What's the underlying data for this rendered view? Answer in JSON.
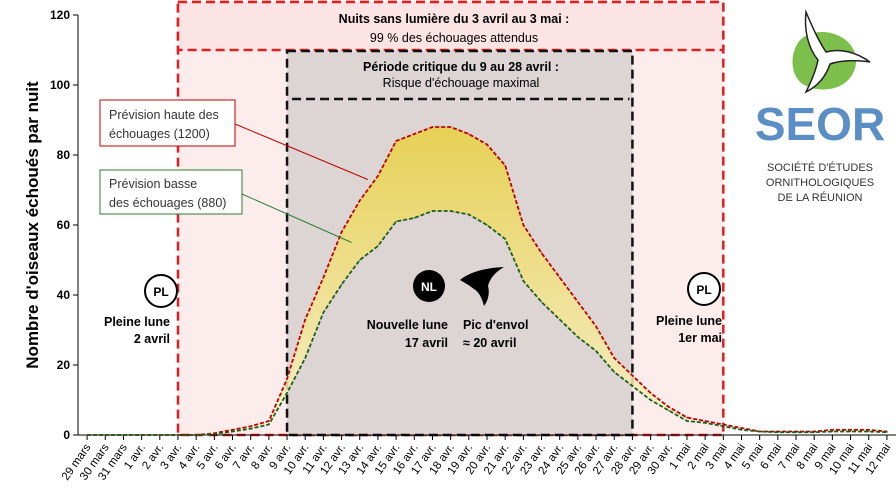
{
  "chart_data": {
    "type": "area",
    "ylabel": "Nombre d'oiseaux échoués par nuit",
    "ylim": [
      0,
      120
    ],
    "yticks": [
      0,
      20,
      40,
      60,
      80,
      100,
      120
    ],
    "categories": [
      "29 mars",
      "30 mars",
      "31 mars",
      "1 avr.",
      "2 avr.",
      "3 avr.",
      "4 avr.",
      "5 avr.",
      "6 avr.",
      "7 avr.",
      "8 avr.",
      "9 avr.",
      "10 avr.",
      "11 avr.",
      "12 avr.",
      "13 avr.",
      "14 avr.",
      "15 avr.",
      "16 avr.",
      "17 avr.",
      "18 avr.",
      "19 avr.",
      "20 avr.",
      "21 avr.",
      "22 avr.",
      "23 avr.",
      "24 avr.",
      "25 avr.",
      "26 avr.",
      "27 avr.",
      "28 avr.",
      "29 avr.",
      "30 avr.",
      "1 mai",
      "2 mai",
      "3 mai",
      "4 mai",
      "5 mai",
      "6 mai",
      "7 mai",
      "8 mai",
      "9 mai",
      "10 mai",
      "11 mai",
      "12 mai"
    ],
    "series": [
      {
        "name": "Prévision haute des échouages (1200)",
        "color": "#c00000",
        "values": [
          0,
          0,
          0,
          0,
          0,
          0,
          0,
          0.5,
          1.5,
          2.5,
          4,
          16,
          33,
          45,
          58,
          67,
          74,
          84,
          86,
          88,
          88,
          86,
          83,
          77,
          60,
          52,
          45,
          38,
          31,
          22,
          17,
          12,
          8,
          5,
          4,
          3,
          2,
          1,
          1,
          1,
          1,
          1.5,
          1.5,
          1.5,
          1
        ]
      },
      {
        "name": "Prévision basse des échouages (880)",
        "color": "#2e7d32",
        "values": [
          0,
          0,
          0,
          0,
          0,
          0,
          0,
          0.3,
          1,
          1.8,
          3,
          12,
          22,
          35,
          43,
          50,
          54,
          61,
          62,
          64,
          64,
          63,
          60,
          56,
          44,
          38,
          33,
          28,
          24,
          18,
          14,
          10,
          7,
          4,
          3.5,
          2.5,
          1.5,
          1,
          0.8,
          0.8,
          0.8,
          1,
          1,
          1,
          0.8
        ]
      }
    ],
    "annotations": {
      "night_period": {
        "title": "Nuits sans lumière du 3 avril au 3 mai :",
        "subtitle": "99 % des échouages attendus",
        "from": "3 avr.",
        "to": "3 mai"
      },
      "critical_period": {
        "title": "Période critique du 9 au 28 avril :",
        "subtitle": "Risque d'échouage maximal",
        "from": "9 avr.",
        "to": "28 avr."
      },
      "full_moon_1": {
        "badge": "PL",
        "line1": "Pleine lune",
        "line2": "2 avril"
      },
      "full_moon_2": {
        "badge": "PL",
        "line1": "Pleine lune",
        "line2": "1er mai"
      },
      "new_moon": {
        "badge": "NL",
        "line1": "Nouvelle lune",
        "line2": "17 avril"
      },
      "peak": {
        "line1": "Pic d'envol",
        "line2": "≈ 20 avril"
      },
      "high_callout": {
        "line1": "Prévision haute des",
        "line2": "échouages (1200)"
      },
      "low_callout": {
        "line1": "Prévision basse",
        "line2": "des échouages (880)"
      }
    }
  },
  "logo": {
    "name": "SEOR",
    "line1": "SOCIÉTÉ D'ÉTUDES",
    "line2": "ORNITHOLOGIQUES",
    "line3": "DE LA RÉUNION",
    "color_primary": "#5b8ec4",
    "color_green": "#7cbf4a"
  }
}
